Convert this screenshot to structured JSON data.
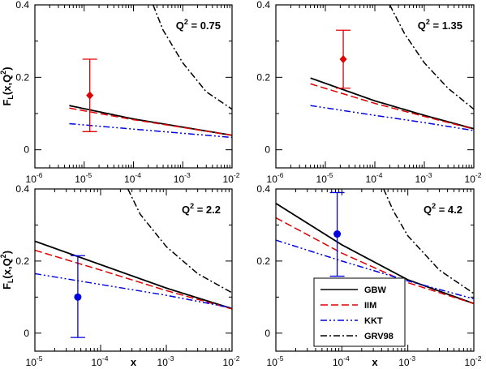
{
  "chart_data": [
    {
      "type": "line",
      "panel": "top-left",
      "annotation": {
        "base": "Q",
        "sup": "2",
        "value": "= 0.75"
      },
      "ylabel": {
        "main": "F",
        "sub": "L",
        "tail": "(x,Q",
        "sup": "2",
        "close": ")"
      },
      "xlabel": "",
      "xscale": "log",
      "xlim": [
        1e-06,
        0.01
      ],
      "ylim": [
        -0.05,
        0.4
      ],
      "xticks": [
        {
          "base": "10",
          "exp": "-6",
          "value": 1e-06
        },
        {
          "base": "10",
          "exp": "-5",
          "value": 1e-05
        },
        {
          "base": "10",
          "exp": "-4",
          "value": 0.0001
        },
        {
          "base": "10",
          "exp": "-3",
          "value": 0.001
        },
        {
          "base": "10",
          "exp": "-2",
          "value": 0.01
        }
      ],
      "yticks": [
        {
          "label": "0",
          "value": 0
        },
        {
          "label": "0.2",
          "value": 0.2
        },
        {
          "label": "0.4",
          "value": 0.4
        }
      ],
      "series": [
        {
          "name": "GBW",
          "style": "solid",
          "color": "#000000",
          "x": [
            5e-06,
            0.0001,
            0.01
          ],
          "y": [
            0.122,
            0.085,
            0.04
          ]
        },
        {
          "name": "IIM",
          "style": "dashed",
          "color": "#e00000",
          "x": [
            5e-06,
            0.0001,
            0.01
          ],
          "y": [
            0.115,
            0.083,
            0.04
          ]
        },
        {
          "name": "KKT",
          "style": "dashdotdot",
          "color": "#0000e0",
          "x": [
            5e-06,
            0.0001,
            0.01
          ],
          "y": [
            0.072,
            0.057,
            0.034
          ]
        },
        {
          "name": "GRV98",
          "style": "dashdot",
          "color": "#000000",
          "x": [
            0.00025,
            0.0004,
            0.001,
            0.003,
            0.01
          ],
          "y": [
            0.4,
            0.33,
            0.24,
            0.16,
            0.112
          ]
        }
      ],
      "data_point": {
        "marker": "diamond",
        "color": "#e00000",
        "x": 1.3e-05,
        "y": 0.15,
        "err_low": 0.05,
        "err_high": 0.25
      }
    },
    {
      "type": "line",
      "panel": "top-right",
      "annotation": {
        "base": "Q",
        "sup": "2",
        "value": "= 1.35"
      },
      "ylabel": null,
      "xlabel": "",
      "xscale": "log",
      "xlim": [
        1e-06,
        0.01
      ],
      "ylim": [
        -0.05,
        0.4
      ],
      "xticks": [
        {
          "base": "10",
          "exp": "-6",
          "value": 1e-06
        },
        {
          "base": "10",
          "exp": "-5",
          "value": 1e-05
        },
        {
          "base": "10",
          "exp": "-4",
          "value": 0.0001
        },
        {
          "base": "10",
          "exp": "-3",
          "value": 0.001
        },
        {
          "base": "10",
          "exp": "-2",
          "value": 0.01
        }
      ],
      "yticks": [
        {
          "label": "0",
          "value": 0
        },
        {
          "label": "0.2",
          "value": 0.2
        },
        {
          "label": "0.4",
          "value": 0.4
        }
      ],
      "series": [
        {
          "name": "GBW",
          "style": "solid",
          "color": "#000000",
          "x": [
            5e-06,
            0.0001,
            0.001,
            0.01
          ],
          "y": [
            0.198,
            0.135,
            0.095,
            0.058
          ]
        },
        {
          "name": "IIM",
          "style": "dashed",
          "color": "#e00000",
          "x": [
            5e-06,
            0.0001,
            0.001,
            0.01
          ],
          "y": [
            0.182,
            0.128,
            0.092,
            0.057
          ]
        },
        {
          "name": "KKT",
          "style": "dashdotdot",
          "color": "#0000e0",
          "x": [
            5e-06,
            0.0001,
            0.001,
            0.01
          ],
          "y": [
            0.122,
            0.095,
            0.075,
            0.053
          ]
        },
        {
          "name": "GRV98",
          "style": "dashdot",
          "color": "#000000",
          "x": [
            0.0002,
            0.0004,
            0.001,
            0.003,
            0.01
          ],
          "y": [
            0.4,
            0.32,
            0.24,
            0.17,
            0.112
          ]
        }
      ],
      "data_point": {
        "marker": "diamond",
        "color": "#e00000",
        "x": 2.3e-05,
        "y": 0.25,
        "err_low": 0.17,
        "err_high": 0.33
      }
    },
    {
      "type": "line",
      "panel": "bottom-left",
      "annotation": {
        "base": "Q",
        "sup": "2",
        "value": "= 2.2"
      },
      "ylabel": {
        "main": "F",
        "sub": "L",
        "tail": "(x,Q",
        "sup": "2",
        "close": ")"
      },
      "xlabel": "x",
      "xscale": "log",
      "xlim": [
        1e-05,
        0.01
      ],
      "ylim": [
        -0.05,
        0.4
      ],
      "xticks": [
        {
          "base": "10",
          "exp": "-5",
          "value": 1e-05
        },
        {
          "base": "10",
          "exp": "-4",
          "value": 0.0001
        },
        {
          "base": "10",
          "exp": "-3",
          "value": 0.001
        },
        {
          "base": "10",
          "exp": "-2",
          "value": 0.01
        }
      ],
      "yticks": [
        {
          "label": "0",
          "value": 0
        },
        {
          "label": "0.2",
          "value": 0.2
        },
        {
          "label": "0.4",
          "value": 0.4
        }
      ],
      "series": [
        {
          "name": "GBW",
          "style": "solid",
          "color": "#000000",
          "x": [
            1e-05,
            0.0001,
            0.001,
            0.01
          ],
          "y": [
            0.255,
            0.19,
            0.125,
            0.068
          ]
        },
        {
          "name": "IIM",
          "style": "dashed",
          "color": "#e00000",
          "x": [
            1e-05,
            0.0001,
            0.001,
            0.01
          ],
          "y": [
            0.23,
            0.175,
            0.118,
            0.067
          ]
        },
        {
          "name": "KKT",
          "style": "dashdotdot",
          "color": "#0000e0",
          "x": [
            1e-05,
            0.0001,
            0.001,
            0.01
          ],
          "y": [
            0.165,
            0.135,
            0.105,
            0.07
          ]
        },
        {
          "name": "GRV98",
          "style": "dashdot",
          "color": "#000000",
          "x": [
            0.00026,
            0.0004,
            0.001,
            0.003,
            0.01
          ],
          "y": [
            0.4,
            0.33,
            0.24,
            0.165,
            0.112
          ]
        }
      ],
      "data_point": {
        "marker": "circle",
        "color": "#0000e0",
        "x": 4.5e-05,
        "y": 0.1,
        "err_low": -0.012,
        "err_high": 0.215
      }
    },
    {
      "type": "line",
      "panel": "bottom-right",
      "annotation": {
        "base": "Q",
        "sup": "2",
        "value": "= 4.2"
      },
      "ylabel": null,
      "xlabel": "x",
      "xscale": "log",
      "xlim": [
        1e-05,
        0.01
      ],
      "ylim": [
        -0.05,
        0.4
      ],
      "xticks": [
        {
          "base": "10",
          "exp": "-5",
          "value": 1e-05
        },
        {
          "base": "10",
          "exp": "-4",
          "value": 0.0001
        },
        {
          "base": "10",
          "exp": "-3",
          "value": 0.001
        },
        {
          "base": "10",
          "exp": "-2",
          "value": 0.01
        }
      ],
      "yticks": [
        {
          "label": "0",
          "value": 0
        },
        {
          "label": "0.2",
          "value": 0.2
        },
        {
          "label": "0.4",
          "value": 0.4
        }
      ],
      "series": [
        {
          "name": "GBW",
          "style": "solid",
          "color": "#000000",
          "x": [
            1e-05,
            0.0001,
            0.001,
            0.01
          ],
          "y": [
            0.36,
            0.245,
            0.148,
            0.082
          ]
        },
        {
          "name": "IIM",
          "style": "dashed",
          "color": "#e00000",
          "x": [
            1e-05,
            0.0001,
            0.001,
            0.01
          ],
          "y": [
            0.32,
            0.222,
            0.14,
            0.082
          ]
        },
        {
          "name": "KKT",
          "style": "dashdotdot",
          "color": "#0000e0",
          "x": [
            1e-05,
            0.0001,
            0.001,
            0.01
          ],
          "y": [
            0.258,
            0.2,
            0.145,
            0.095
          ]
        },
        {
          "name": "GRV98",
          "style": "dashdot",
          "color": "#000000",
          "x": [
            0.00043,
            0.0006,
            0.001,
            0.003,
            0.01
          ],
          "y": [
            0.4,
            0.34,
            0.27,
            0.175,
            0.11
          ]
        }
      ],
      "data_point": {
        "marker": "circle",
        "color": "#0000e0",
        "x": 8.5e-05,
        "y": 0.275,
        "err_low": 0.158,
        "err_high": 0.39
      }
    }
  ],
  "legend": {
    "placement": "bottom-right panel, lower-left of center",
    "entries": [
      {
        "name": "GBW",
        "style": "solid",
        "color": "#000000"
      },
      {
        "name": "IIM",
        "style": "dashed",
        "color": "#e00000"
      },
      {
        "name": "KKT",
        "style": "dashdotdot",
        "color": "#0000e0"
      },
      {
        "name": "GRV98",
        "style": "dashdot",
        "color": "#000000"
      }
    ]
  }
}
